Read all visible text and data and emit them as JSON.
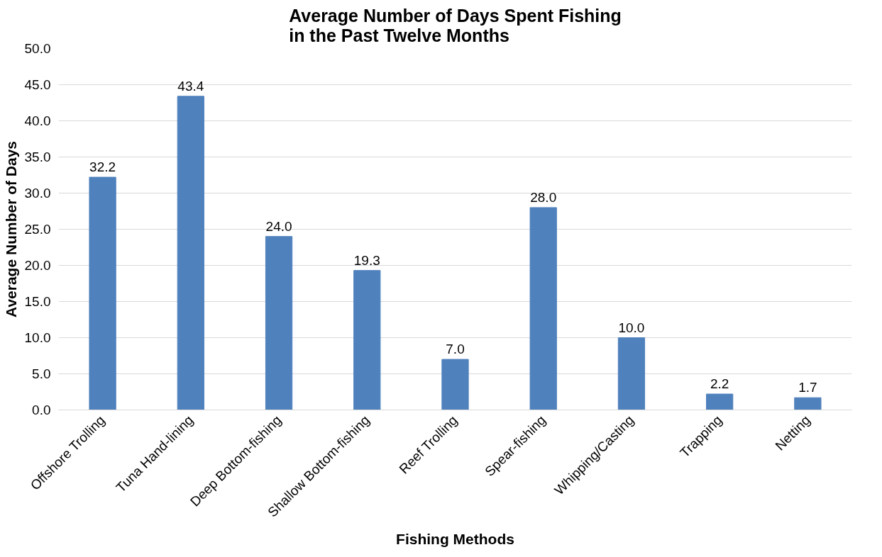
{
  "chart_data": {
    "type": "bar",
    "title": "Average Number of Days Spent Fishing\nin the Past Twelve Months",
    "xlabel": "Fishing Methods",
    "ylabel": "Average Number of Days",
    "categories": [
      "Offshore Trolling",
      "Tuna Hand-lining",
      "Deep Bottom-fishing",
      "Shallow Bottom-fishing",
      "Reef Trolling",
      "Spear-fishing",
      "Whipping/Casting",
      "Trapping",
      "Netting"
    ],
    "values": [
      32.2,
      43.4,
      24.0,
      19.3,
      7.0,
      28.0,
      10.0,
      2.2,
      1.7
    ],
    "value_labels": [
      "32.2",
      "43.4",
      "24.0",
      "19.3",
      "7.0",
      "28.0",
      "10.0",
      "2.2",
      "1.7"
    ],
    "color": "#4f81bd",
    "ylim": [
      0,
      50
    ],
    "yticks": [
      {
        "value": 0,
        "label": "0.0"
      },
      {
        "value": 5,
        "label": "5.0"
      },
      {
        "value": 10,
        "label": "10.0"
      },
      {
        "value": 15,
        "label": "15.0"
      },
      {
        "value": 20,
        "label": "20.0"
      },
      {
        "value": 25,
        "label": "25.0"
      },
      {
        "value": 30,
        "label": "30.0"
      },
      {
        "value": 35,
        "label": "35.0"
      },
      {
        "value": 40,
        "label": "40.0"
      },
      {
        "value": 45,
        "label": "45.0"
      },
      {
        "value": 50,
        "label": "50.0"
      }
    ],
    "grid": "y"
  }
}
